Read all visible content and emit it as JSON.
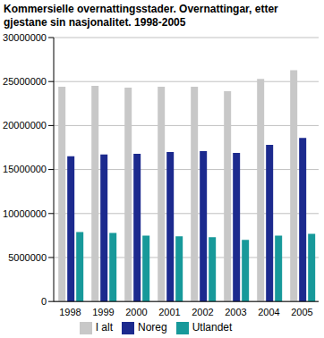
{
  "chart_data": {
    "type": "bar",
    "title": "Kommersielle overnattingsstader. Overnattingar, etter gjestane sin nasjonalitet. 1998-2005",
    "categories": [
      "1998",
      "1999",
      "2000",
      "2001",
      "2002",
      "2003",
      "2004",
      "2005"
    ],
    "series": [
      {
        "name": "I alt",
        "color": "#c8c8c8",
        "values": [
          24400000,
          24500000,
          24300000,
          24400000,
          24400000,
          23900000,
          25300000,
          26300000
        ]
      },
      {
        "name": "Noreg",
        "color": "#1c2a8e",
        "values": [
          16500000,
          16700000,
          16800000,
          17000000,
          17100000,
          16900000,
          17800000,
          18600000
        ]
      },
      {
        "name": "Utlandet",
        "color": "#17999a",
        "values": [
          7900000,
          7800000,
          7500000,
          7400000,
          7300000,
          7000000,
          7500000,
          7700000
        ]
      }
    ],
    "ylim": [
      0,
      30000000
    ],
    "yticks": [
      0,
      5000000,
      10000000,
      15000000,
      20000000,
      25000000,
      30000000
    ],
    "grid": true,
    "legend": "bottom"
  }
}
